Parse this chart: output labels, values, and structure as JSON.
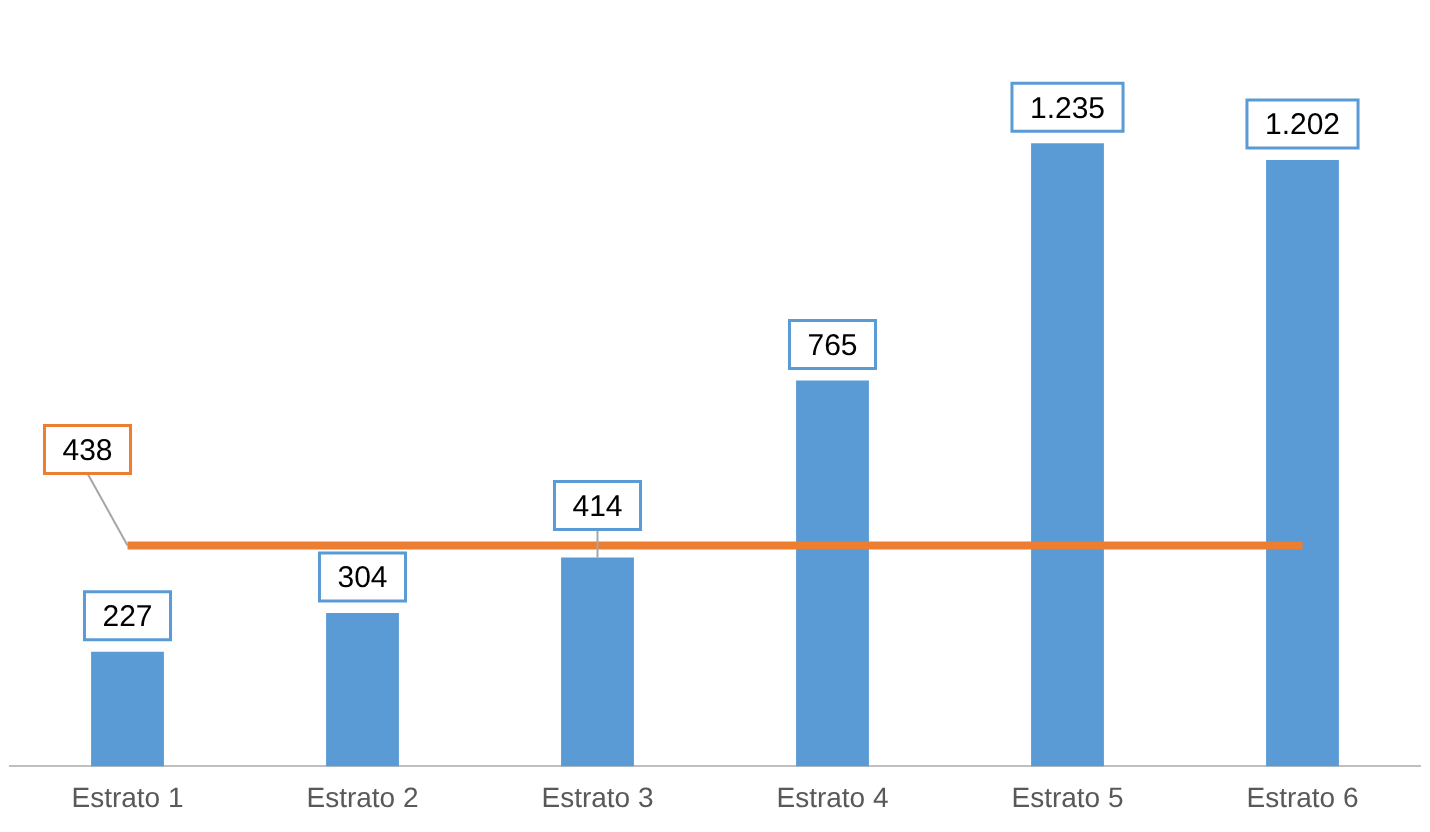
{
  "chart_data": {
    "type": "bar",
    "categories": [
      "Estrato 1",
      "Estrato 2",
      "Estrato 3",
      "Estrato 4",
      "Estrato 5",
      "Estrato 6"
    ],
    "series": [
      {
        "color": "#5b9bd5",
        "values": [
          227,
          304,
          414,
          765,
          1235,
          1202
        ],
        "value_labels": [
          "227",
          "304",
          "414",
          "765",
          "1.235",
          "1.202"
        ]
      },
      {
        "type": "line",
        "color": "#ed7d31",
        "values": [
          438,
          438,
          438,
          438,
          438,
          438
        ],
        "value_labels": [
          "438",
          null,
          null,
          null,
          null,
          null
        ]
      }
    ],
    "grid": false,
    "legend": false,
    "marker": "none",
    "tick_labels": "x"
  }
}
